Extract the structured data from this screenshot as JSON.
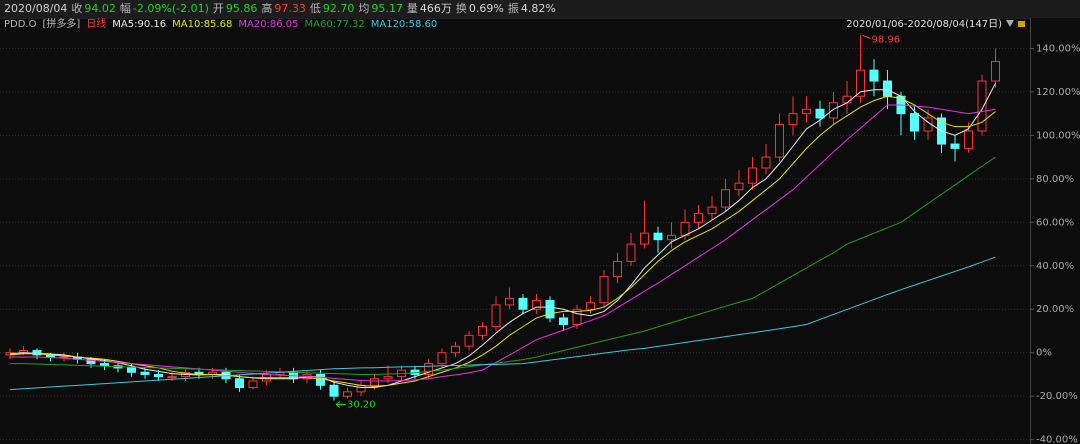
{
  "quote": {
    "date": "2020/08/04",
    "fields": [
      {
        "label": "收",
        "value": "94.02",
        "color": "#22d322"
      },
      {
        "label": "幅",
        "value": "-2.09%(-2.01)",
        "color": "#22d322"
      },
      {
        "label": "开",
        "value": "95.86",
        "color": "#22d322"
      },
      {
        "label": "高",
        "value": "97.33",
        "color": "#ff3b3b"
      },
      {
        "label": "低",
        "value": "92.70",
        "color": "#22d322"
      },
      {
        "label": "均",
        "value": "95.17",
        "color": "#22d322"
      },
      {
        "label": "量",
        "value": "466万",
        "color": "#d8d8d8"
      },
      {
        "label": "换",
        "value": "0.69%",
        "color": "#d8d8d8"
      },
      {
        "label": "振",
        "value": "4.82%",
        "color": "#d8d8d8"
      }
    ]
  },
  "chart_data": {
    "type": "candlestick",
    "symbol": "PDD.O",
    "name": "[拼多多]",
    "period": "日线",
    "period_color": "#ff3b3b",
    "range": "2020/01/06-2020/08/04(147日)",
    "up_color": "#ff3232",
    "down_color": "#54ffff",
    "ylim": [
      -42,
      154
    ],
    "yticks": [
      {
        "value": 140,
        "label": "140.00%"
      },
      {
        "value": 120,
        "label": "120.00%"
      },
      {
        "value": 100,
        "label": "100.00%"
      },
      {
        "value": 80,
        "label": "80.00%"
      },
      {
        "value": 60,
        "label": "60.00%"
      },
      {
        "value": 40,
        "label": "40.00%"
      },
      {
        "value": 20,
        "label": "20.00%"
      },
      {
        "value": 0,
        "label": "0%"
      },
      {
        "value": -20,
        "label": "-20.00%"
      },
      {
        "value": -40,
        "label": "-40.00%"
      }
    ],
    "grid": true,
    "open": [
      -1,
      0,
      1,
      -1,
      -2,
      -2,
      -3,
      -5,
      -6,
      -7,
      -9,
      -10,
      -11,
      -11,
      -9,
      -10,
      -9,
      -12,
      -16,
      -13,
      -10,
      -9,
      -12,
      -10,
      -15,
      -20,
      -18,
      -15,
      -12,
      -11,
      -8,
      -10,
      -5,
      0,
      3,
      8,
      12,
      22,
      25,
      20,
      24,
      16,
      13,
      20,
      23,
      35,
      42,
      50,
      55,
      52,
      54,
      60,
      64,
      67,
      75,
      78,
      85,
      90,
      105,
      110,
      112,
      108,
      115,
      118,
      130,
      125,
      118,
      110,
      102,
      108,
      96,
      94,
      102,
      125
    ],
    "high": [
      2,
      3,
      2,
      0,
      0,
      0,
      -2,
      -3,
      -4,
      -5,
      -7,
      -8,
      -9,
      -7,
      -7,
      -7,
      -7,
      -10,
      -11,
      -8,
      -7,
      -7,
      -8,
      -8,
      -13,
      -16,
      -13,
      -10,
      -6,
      -6,
      -6,
      -3,
      2,
      5,
      10,
      14,
      26,
      30,
      27,
      27,
      26,
      18,
      22,
      26,
      38,
      46,
      55,
      70,
      58,
      60,
      66,
      68,
      72,
      80,
      84,
      90,
      96,
      110,
      118,
      118,
      116,
      120,
      125,
      146,
      135,
      130,
      120,
      114,
      112,
      110,
      100,
      106,
      128,
      140
    ],
    "low": [
      -3,
      -1,
      -3,
      -4,
      -4,
      -5,
      -7,
      -8,
      -9,
      -11,
      -12,
      -13,
      -13,
      -13,
      -12,
      -12,
      -14,
      -18,
      -17,
      -15,
      -12,
      -14,
      -14,
      -17,
      -22,
      -21,
      -20,
      -17,
      -14,
      -13,
      -12,
      -12,
      -7,
      -2,
      1,
      6,
      10,
      20,
      18,
      18,
      14,
      10,
      11,
      18,
      21,
      32,
      40,
      48,
      46,
      48,
      52,
      57,
      61,
      65,
      72,
      75,
      82,
      88,
      100,
      106,
      104,
      105,
      110,
      115,
      118,
      112,
      100,
      98,
      98,
      92,
      88,
      92,
      100,
      122
    ],
    "close": [
      0,
      1,
      -1,
      -2,
      -2,
      -3,
      -5,
      -6,
      -7,
      -9,
      -10,
      -11,
      -11,
      -9,
      -10,
      -9,
      -12,
      -16,
      -13,
      -10,
      -9,
      -12,
      -10,
      -15,
      -20,
      -18,
      -15,
      -12,
      -11,
      -8,
      -10,
      -5,
      0,
      3,
      8,
      12,
      22,
      25,
      20,
      24,
      16,
      13,
      20,
      23,
      35,
      42,
      50,
      55,
      52,
      54,
      60,
      64,
      67,
      75,
      78,
      85,
      90,
      105,
      110,
      112,
      108,
      115,
      118,
      130,
      125,
      118,
      110,
      102,
      108,
      96,
      94,
      102,
      125,
      134
    ],
    "annotations": {
      "max": "98.96",
      "min": "30.20"
    },
    "series": [
      {
        "name": "MA5:90.16",
        "color": "#ececec",
        "values": [
          -0.5,
          0,
          -0.3,
          -0.6,
          -1,
          -2,
          -2.8,
          -3.6,
          -4.6,
          -6,
          -7.6,
          -8.6,
          -9.6,
          -10,
          -10.2,
          -10,
          -10,
          -11,
          -11.6,
          -12,
          -12,
          -12,
          -11,
          -11,
          -13.6,
          -15,
          -16,
          -16,
          -15,
          -13,
          -11,
          -9,
          -7,
          -5,
          -1.5,
          3.5,
          9,
          14,
          18,
          21,
          21,
          20,
          18,
          17,
          19,
          24,
          31,
          39,
          45,
          51,
          54,
          57,
          61,
          65,
          70,
          76,
          80,
          87,
          95,
          103,
          107,
          112,
          115,
          120,
          121,
          121,
          118,
          111,
          106,
          102,
          100,
          103,
          112,
          124
        ]
      },
      {
        "name": "MA10:85.68",
        "color": "#e6e600",
        "values": [
          -1,
          -0.5,
          -0.5,
          -1,
          -1.5,
          -2,
          -2.5,
          -3,
          -4,
          -5,
          -6,
          -7,
          -8.5,
          -9.5,
          -10,
          -10,
          -10.5,
          -11,
          -11.5,
          -11.5,
          -11.5,
          -11.5,
          -11.5,
          -12,
          -13,
          -14,
          -15,
          -15.5,
          -15,
          -14,
          -13,
          -11,
          -9,
          -7,
          -4.5,
          -1,
          3,
          8,
          12,
          16,
          18,
          19,
          19,
          19.5,
          21,
          25,
          30,
          36,
          42,
          47,
          51,
          54,
          57,
          61,
          65,
          70,
          75,
          80,
          87,
          94,
          100,
          105,
          109,
          113,
          116,
          118,
          117,
          114,
          110,
          106,
          104,
          104,
          106,
          111
        ]
      },
      {
        "name": "MA20:86.05",
        "color": "#e632e6",
        "values": [
          -2,
          -2,
          -2,
          -2.2,
          -2.5,
          -3,
          -3.5,
          -4,
          -4.5,
          -5,
          -5.5,
          -6,
          -6.5,
          -7,
          -7.5,
          -8,
          -8.5,
          -9,
          -9.5,
          -10,
          -10.3,
          -10.6,
          -11,
          -11.3,
          -11.8,
          -12.3,
          -12.8,
          -13,
          -13,
          -12.8,
          -12.5,
          -12,
          -11,
          -10.2,
          -9.2,
          -8,
          -4.5,
          -1,
          2.5,
          6,
          8.2,
          10.4,
          12.6,
          14.8,
          17,
          20.7,
          24.5,
          28.3,
          32,
          36,
          40,
          44,
          48,
          52,
          56.6,
          61.2,
          65.8,
          70.4,
          75,
          80.8,
          86.6,
          92.4,
          98,
          103.3,
          108.7,
          114,
          114,
          113.5,
          113,
          112,
          111,
          110,
          111,
          112
        ]
      },
      {
        "name": "MA60:77.32",
        "color": "#1ea01e",
        "values": [
          -5,
          -5,
          -5.2,
          -5.4,
          -5.6,
          -5.8,
          -6,
          -6.2,
          -6.4,
          -6.6,
          -6.8,
          -7,
          -7.2,
          -7.4,
          -7.6,
          -7.8,
          -8,
          -8.2,
          -8.4,
          -8.6,
          -8.8,
          -9,
          -9.2,
          -9.4,
          -9.6,
          -9.8,
          -10,
          -10,
          -9.8,
          -9.6,
          -9.2,
          -8.6,
          -8,
          -7.2,
          -6.4,
          -5.6,
          -4.8,
          -4,
          -3.2,
          -2,
          -0.5,
          1,
          2.5,
          4,
          5.5,
          7,
          8.5,
          10,
          11.9,
          13.8,
          15.7,
          17.6,
          19.5,
          21.4,
          23.2,
          25,
          28.5,
          32,
          35.5,
          39,
          42.5,
          46,
          50,
          52.5,
          55,
          57.5,
          60,
          64.3,
          68.6,
          72.9,
          77.2,
          81.5,
          85.8,
          90
        ]
      },
      {
        "name": "MA120:58.60",
        "color": "#3cc8dc",
        "values": [
          -17,
          -16.6,
          -16.2,
          -15.8,
          -15.4,
          -15,
          -14.6,
          -14.2,
          -13.8,
          -13.4,
          -13,
          -12.6,
          -12.2,
          -11.8,
          -11.4,
          -11,
          -10.6,
          -10.2,
          -9.8,
          -9.4,
          -9,
          -8.6,
          -8.2,
          -7.8,
          -7.4,
          -7.2,
          -7,
          -6.9,
          -6.7,
          -6.5,
          -6.4,
          -6.2,
          -6,
          -5.9,
          -5.7,
          -5.5,
          -5.4,
          -5.2,
          -5,
          -4.2,
          -3.4,
          -2.6,
          -1.8,
          -1,
          -0.2,
          0.6,
          1.4,
          2,
          2.9,
          3.8,
          4.7,
          5.6,
          6.5,
          7.4,
          8.3,
          9.2,
          10.1,
          11,
          12,
          13,
          15.3,
          17.6,
          19.9,
          22.2,
          24.5,
          26.8,
          29,
          31.1,
          33.2,
          35.3,
          37.4,
          39.5,
          41.7,
          44
        ]
      }
    ]
  }
}
